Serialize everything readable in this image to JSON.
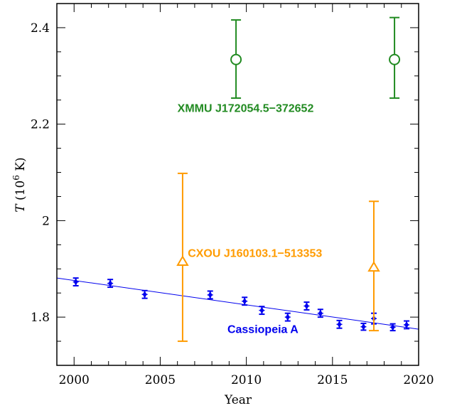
{
  "chart_data": {
    "type": "scatter",
    "xlabel": "Year",
    "ylabel_italic": "T",
    "ylabel_rest": " (10",
    "ylabel_sup": "6",
    "ylabel_end": " K)",
    "xlim": [
      1999,
      2020
    ],
    "ylim": [
      1.7,
      2.45
    ],
    "x_ticks": [
      2000,
      2005,
      2010,
      2015,
      2020
    ],
    "y_ticks": [
      1.8,
      2,
      2.2,
      2.4
    ],
    "y_tick_labels": [
      "1.8",
      "2",
      "2.2",
      "2.4"
    ],
    "series": [
      {
        "name": "Cassiopeia A",
        "color": "#0000ee",
        "marker": "star",
        "points": [
          {
            "x": 2000.1,
            "y": 1.873,
            "lo": 1.865,
            "hi": 1.881
          },
          {
            "x": 2002.1,
            "y": 1.87,
            "lo": 1.862,
            "hi": 1.878
          },
          {
            "x": 2004.1,
            "y": 1.847,
            "lo": 1.839,
            "hi": 1.855
          },
          {
            "x": 2007.9,
            "y": 1.846,
            "lo": 1.838,
            "hi": 1.854
          },
          {
            "x": 2009.9,
            "y": 1.833,
            "lo": 1.825,
            "hi": 1.841
          },
          {
            "x": 2010.9,
            "y": 1.814,
            "lo": 1.806,
            "hi": 1.822
          },
          {
            "x": 2012.4,
            "y": 1.8,
            "lo": 1.792,
            "hi": 1.808
          },
          {
            "x": 2013.5,
            "y": 1.823,
            "lo": 1.815,
            "hi": 1.831
          },
          {
            "x": 2014.3,
            "y": 1.808,
            "lo": 1.8,
            "hi": 1.816
          },
          {
            "x": 2015.4,
            "y": 1.785,
            "lo": 1.777,
            "hi": 1.793
          },
          {
            "x": 2016.8,
            "y": 1.78,
            "lo": 1.773,
            "hi": 1.787
          },
          {
            "x": 2017.4,
            "y": 1.797,
            "lo": 1.786,
            "hi": 1.808
          },
          {
            "x": 2018.5,
            "y": 1.779,
            "lo": 1.772,
            "hi": 1.786
          },
          {
            "x": 2019.3,
            "y": 1.784,
            "lo": 1.776,
            "hi": 1.792
          }
        ],
        "fit_line": [
          [
            1999,
            1.881
          ],
          [
            2020,
            1.775
          ]
        ]
      },
      {
        "name": "CXOU J160103.1−513353",
        "color": "#ff9b00",
        "marker": "triangle",
        "points": [
          {
            "x": 2006.3,
            "y": 1.915,
            "lo": 1.75,
            "hi": 2.098
          },
          {
            "x": 2017.4,
            "y": 1.903,
            "lo": 1.772,
            "hi": 2.04
          }
        ]
      },
      {
        "name": "XMMU J172054.5−372652",
        "color": "#228b22",
        "marker": "circle",
        "points": [
          {
            "x": 2009.4,
            "y": 2.334,
            "lo": 2.254,
            "hi": 2.416
          },
          {
            "x": 2018.6,
            "y": 2.334,
            "lo": 2.254,
            "hi": 2.421
          }
        ]
      }
    ],
    "annotations": [
      {
        "text": "XMMU J172054.5−372652",
        "color": "#228b22",
        "x": 2006.0,
        "y": 2.225
      },
      {
        "text": "CXOU J160103.1−513353",
        "color": "#ff9b00",
        "x": 2006.6,
        "y": 1.925
      },
      {
        "text": "Cassiopeia A",
        "color": "#0000ee",
        "x": 2008.9,
        "y": 1.767
      }
    ]
  }
}
